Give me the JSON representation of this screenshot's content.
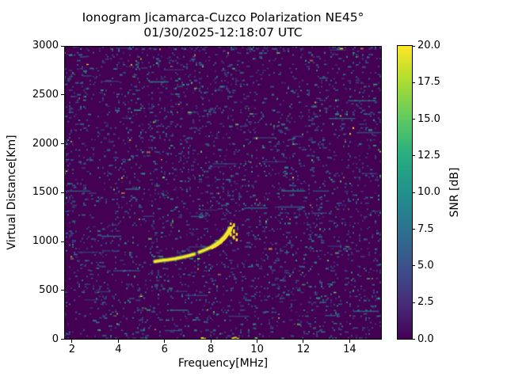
{
  "figure": {
    "title_line1": "Ionogram Jicamarca-Cuzco Polarization NE45°",
    "title_line2": "01/30/2025-12:18:07 UTC"
  },
  "chart_data": {
    "type": "heatmap",
    "title": "Ionogram Jicamarca-Cuzco Polarization NE45°",
    "subtitle": "01/30/2025-12:18:07 UTC",
    "xlabel": "Frequency[MHz]",
    "ylabel": "Virtual Distance[Km]",
    "colorbar_label": "SNR [dB]",
    "xlim": [
      1.66,
      15.39
    ],
    "ylim": [
      0,
      3000
    ],
    "clim": [
      0,
      20
    ],
    "x_ticks": [
      2,
      4,
      6,
      8,
      10,
      12,
      14
    ],
    "y_ticks": [
      0,
      500,
      1000,
      1500,
      2000,
      2500,
      3000
    ],
    "colorbar_ticks": [
      0.0,
      2.5,
      5.0,
      7.5,
      10.0,
      12.5,
      15.0,
      17.5,
      20.0
    ],
    "grid": false,
    "legend": "colorbar-right",
    "colormap": {
      "name": "viridis",
      "stops": [
        "#440154",
        "#472d7b",
        "#3b528b",
        "#2c728e",
        "#21918c",
        "#27ad81",
        "#5ec962",
        "#aadc32",
        "#fde725"
      ]
    },
    "background_color": "#440154",
    "trace_color": "#fde725",
    "trace_fringe_color": "#7ad151",
    "noise": {
      "seed": 20250130,
      "density": 0.105,
      "cell_w": 2.0,
      "cell_h": 2.5,
      "streak_count": 46,
      "palette": [
        "#3b528b",
        "#31688e",
        "#2c728e",
        "#21918c",
        "#27ad81",
        "#5ec962",
        "#fde725"
      ],
      "weights": [
        0.3,
        0.24,
        0.2,
        0.15,
        0.07,
        0.03,
        0.01
      ]
    },
    "echo_trace": {
      "description": "F-region echo trace, SNR ~20 dB",
      "main_branch_segments": [
        [
          [
            5.58,
            795
          ],
          [
            5.85,
            805
          ],
          [
            6.15,
            813
          ],
          [
            6.45,
            823
          ],
          [
            6.75,
            838
          ],
          [
            7.05,
            855
          ],
          [
            7.28,
            870
          ]
        ],
        [
          [
            7.5,
            890
          ],
          [
            7.75,
            914
          ],
          [
            8.0,
            940
          ],
          [
            8.2,
            970
          ],
          [
            8.4,
            1006
          ],
          [
            8.58,
            1048
          ],
          [
            8.72,
            1094
          ],
          [
            8.82,
            1136
          ]
        ]
      ],
      "second_branch": [
        [
          8.05,
          928
        ],
        [
          8.28,
          958
        ],
        [
          8.48,
          995
        ],
        [
          8.65,
          1035
        ],
        [
          8.78,
          1078
        ],
        [
          8.88,
          1120
        ],
        [
          8.95,
          1158
        ]
      ],
      "spread_dashes": [
        {
          "f": 8.86,
          "segments": [
            [
              1052,
              1092
            ],
            [
              1112,
              1152
            ],
            [
              1170,
              1192
            ]
          ]
        },
        {
          "f": 9.0,
          "segments": [
            [
              1022,
              1062
            ],
            [
              1082,
              1126
            ],
            [
              1148,
              1184
            ]
          ]
        },
        {
          "f": 9.12,
          "segments": [
            [
              1002,
              1030
            ],
            [
              1058,
              1088
            ]
          ]
        }
      ],
      "bottom_hot_pixels": [
        {
          "f": 7.62,
          "d": 12,
          "color": "#fde725"
        },
        {
          "f": 7.72,
          "d": 6,
          "color": "#aadc32"
        },
        {
          "f": 8.95,
          "d": 10,
          "color": "#fde725"
        },
        {
          "f": 9.05,
          "d": 18,
          "color": "#aadc32"
        },
        {
          "f": 9.16,
          "d": 6,
          "color": "#fde725"
        },
        {
          "f": 9.95,
          "d": 12,
          "color": "#5ec962"
        },
        {
          "f": 11.1,
          "d": 8,
          "color": "#27ad81"
        }
      ]
    }
  }
}
